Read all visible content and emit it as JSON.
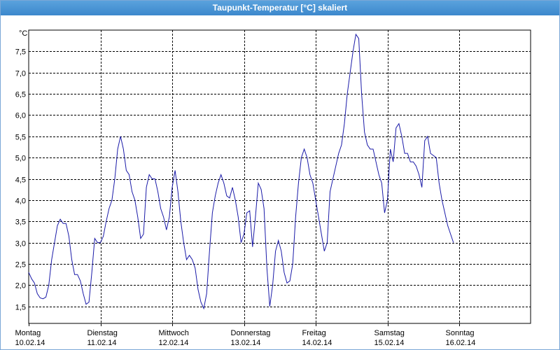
{
  "window": {
    "title": "Taupunkt-Temperatur [°C] skaliert"
  },
  "colors": {
    "line": "#1a1aa8",
    "grid": "#000000",
    "titlebar": "#4a95d4"
  },
  "chart_data": {
    "type": "line",
    "title": "Taupunkt-Temperatur [°C] skaliert",
    "y_unit": "°C",
    "ylim": [
      1.1,
      8.0
    ],
    "grid": true,
    "y_ticks": [
      "1,5",
      "2,0",
      "2,5",
      "3,0",
      "3,5",
      "4,0",
      "4,5",
      "5,0",
      "5,5",
      "6,0",
      "6,5",
      "7,0",
      "7,5"
    ],
    "y_tick_values": [
      1.5,
      2.0,
      2.5,
      3.0,
      3.5,
      4.0,
      4.5,
      5.0,
      5.5,
      6.0,
      6.5,
      7.0,
      7.5
    ],
    "x_ticks": [
      {
        "day": "Montag",
        "date": "10.02.14"
      },
      {
        "day": "Dienstag",
        "date": "11.02.14"
      },
      {
        "day": "Mittwoch",
        "date": "12.02.14"
      },
      {
        "day": "Donnerstag",
        "date": "13.02.14"
      },
      {
        "day": "Freitag",
        "date": "14.02.14"
      },
      {
        "day": "Samstag",
        "date": "15.02.14"
      },
      {
        "day": "Sonntag",
        "date": "16.02.14"
      }
    ],
    "xlim_days": [
      0,
      7
    ],
    "series": [
      {
        "points": [
          [
            0.0,
            2.3
          ],
          [
            0.04,
            2.15
          ],
          [
            0.08,
            2.05
          ],
          [
            0.12,
            1.8
          ],
          [
            0.16,
            1.7
          ],
          [
            0.2,
            1.68
          ],
          [
            0.24,
            1.72
          ],
          [
            0.28,
            2.0
          ],
          [
            0.32,
            2.6
          ],
          [
            0.36,
            3.0
          ],
          [
            0.4,
            3.4
          ],
          [
            0.44,
            3.55
          ],
          [
            0.48,
            3.45
          ],
          [
            0.52,
            3.45
          ],
          [
            0.56,
            3.15
          ],
          [
            0.6,
            2.6
          ],
          [
            0.64,
            2.25
          ],
          [
            0.68,
            2.25
          ],
          [
            0.72,
            2.1
          ],
          [
            0.76,
            1.8
          ],
          [
            0.8,
            1.55
          ],
          [
            0.84,
            1.6
          ],
          [
            0.88,
            2.3
          ],
          [
            0.92,
            3.1
          ],
          [
            0.96,
            3.0
          ],
          [
            1.0,
            3.0
          ],
          [
            1.04,
            3.15
          ],
          [
            1.08,
            3.5
          ],
          [
            1.12,
            3.8
          ],
          [
            1.16,
            4.0
          ],
          [
            1.2,
            4.5
          ],
          [
            1.24,
            5.2
          ],
          [
            1.28,
            5.5
          ],
          [
            1.32,
            5.2
          ],
          [
            1.36,
            4.7
          ],
          [
            1.4,
            4.6
          ],
          [
            1.44,
            4.2
          ],
          [
            1.48,
            4.0
          ],
          [
            1.52,
            3.6
          ],
          [
            1.56,
            3.1
          ],
          [
            1.6,
            3.2
          ],
          [
            1.64,
            4.3
          ],
          [
            1.68,
            4.6
          ],
          [
            1.72,
            4.5
          ],
          [
            1.76,
            4.5
          ],
          [
            1.8,
            4.2
          ],
          [
            1.84,
            3.8
          ],
          [
            1.88,
            3.6
          ],
          [
            1.92,
            3.3
          ],
          [
            1.96,
            3.6
          ],
          [
            2.0,
            4.3
          ],
          [
            2.04,
            4.7
          ],
          [
            2.08,
            4.2
          ],
          [
            2.12,
            3.5
          ],
          [
            2.16,
            3.0
          ],
          [
            2.2,
            2.6
          ],
          [
            2.24,
            2.7
          ],
          [
            2.28,
            2.6
          ],
          [
            2.32,
            2.4
          ],
          [
            2.36,
            1.9
          ],
          [
            2.4,
            1.6
          ],
          [
            2.44,
            1.45
          ],
          [
            2.48,
            1.8
          ],
          [
            2.52,
            2.8
          ],
          [
            2.56,
            3.7
          ],
          [
            2.6,
            4.1
          ],
          [
            2.64,
            4.4
          ],
          [
            2.68,
            4.6
          ],
          [
            2.72,
            4.4
          ],
          [
            2.76,
            4.1
          ],
          [
            2.8,
            4.05
          ],
          [
            2.84,
            4.3
          ],
          [
            2.88,
            4.0
          ],
          [
            2.92,
            3.6
          ],
          [
            2.96,
            3.0
          ],
          [
            3.0,
            3.2
          ],
          [
            3.04,
            3.7
          ],
          [
            3.08,
            3.75
          ],
          [
            3.12,
            2.9
          ],
          [
            3.16,
            3.6
          ],
          [
            3.2,
            4.4
          ],
          [
            3.24,
            4.25
          ],
          [
            3.28,
            3.8
          ],
          [
            3.32,
            2.4
          ],
          [
            3.36,
            1.5
          ],
          [
            3.4,
            2.0
          ],
          [
            3.44,
            2.8
          ],
          [
            3.48,
            3.05
          ],
          [
            3.52,
            2.8
          ],
          [
            3.56,
            2.3
          ],
          [
            3.6,
            2.05
          ],
          [
            3.64,
            2.1
          ],
          [
            3.68,
            2.5
          ],
          [
            3.72,
            3.6
          ],
          [
            3.76,
            4.4
          ],
          [
            3.8,
            5.0
          ],
          [
            3.84,
            5.2
          ],
          [
            3.88,
            5.0
          ],
          [
            3.92,
            4.6
          ],
          [
            3.96,
            4.4
          ],
          [
            4.0,
            4.0
          ],
          [
            4.04,
            3.6
          ],
          [
            4.08,
            3.2
          ],
          [
            4.12,
            2.8
          ],
          [
            4.16,
            3.0
          ],
          [
            4.2,
            4.2
          ],
          [
            4.24,
            4.5
          ],
          [
            4.28,
            4.8
          ],
          [
            4.32,
            5.1
          ],
          [
            4.36,
            5.3
          ],
          [
            4.4,
            5.8
          ],
          [
            4.44,
            6.5
          ],
          [
            4.48,
            7.0
          ],
          [
            4.52,
            7.5
          ],
          [
            4.56,
            7.9
          ],
          [
            4.6,
            7.8
          ],
          [
            4.64,
            6.5
          ],
          [
            4.68,
            5.6
          ],
          [
            4.72,
            5.3
          ],
          [
            4.76,
            5.2
          ],
          [
            4.8,
            5.2
          ],
          [
            4.84,
            4.9
          ],
          [
            4.88,
            4.6
          ],
          [
            4.92,
            4.4
          ],
          [
            4.96,
            3.7
          ],
          [
            5.0,
            4.0
          ],
          [
            5.04,
            5.2
          ],
          [
            5.08,
            4.9
          ],
          [
            5.12,
            5.7
          ],
          [
            5.16,
            5.8
          ],
          [
            5.2,
            5.5
          ],
          [
            5.24,
            5.1
          ],
          [
            5.28,
            5.1
          ],
          [
            5.32,
            4.9
          ],
          [
            5.36,
            4.9
          ],
          [
            5.4,
            4.8
          ],
          [
            5.44,
            4.6
          ],
          [
            5.48,
            4.3
          ],
          [
            5.52,
            5.4
          ],
          [
            5.56,
            5.5
          ],
          [
            5.6,
            5.1
          ],
          [
            5.64,
            5.05
          ],
          [
            5.68,
            5.0
          ],
          [
            5.72,
            4.4
          ],
          [
            5.76,
            4.0
          ],
          [
            5.8,
            3.7
          ],
          [
            5.84,
            3.4
          ],
          [
            5.88,
            3.2
          ],
          [
            5.92,
            3.0
          ]
        ]
      }
    ]
  }
}
